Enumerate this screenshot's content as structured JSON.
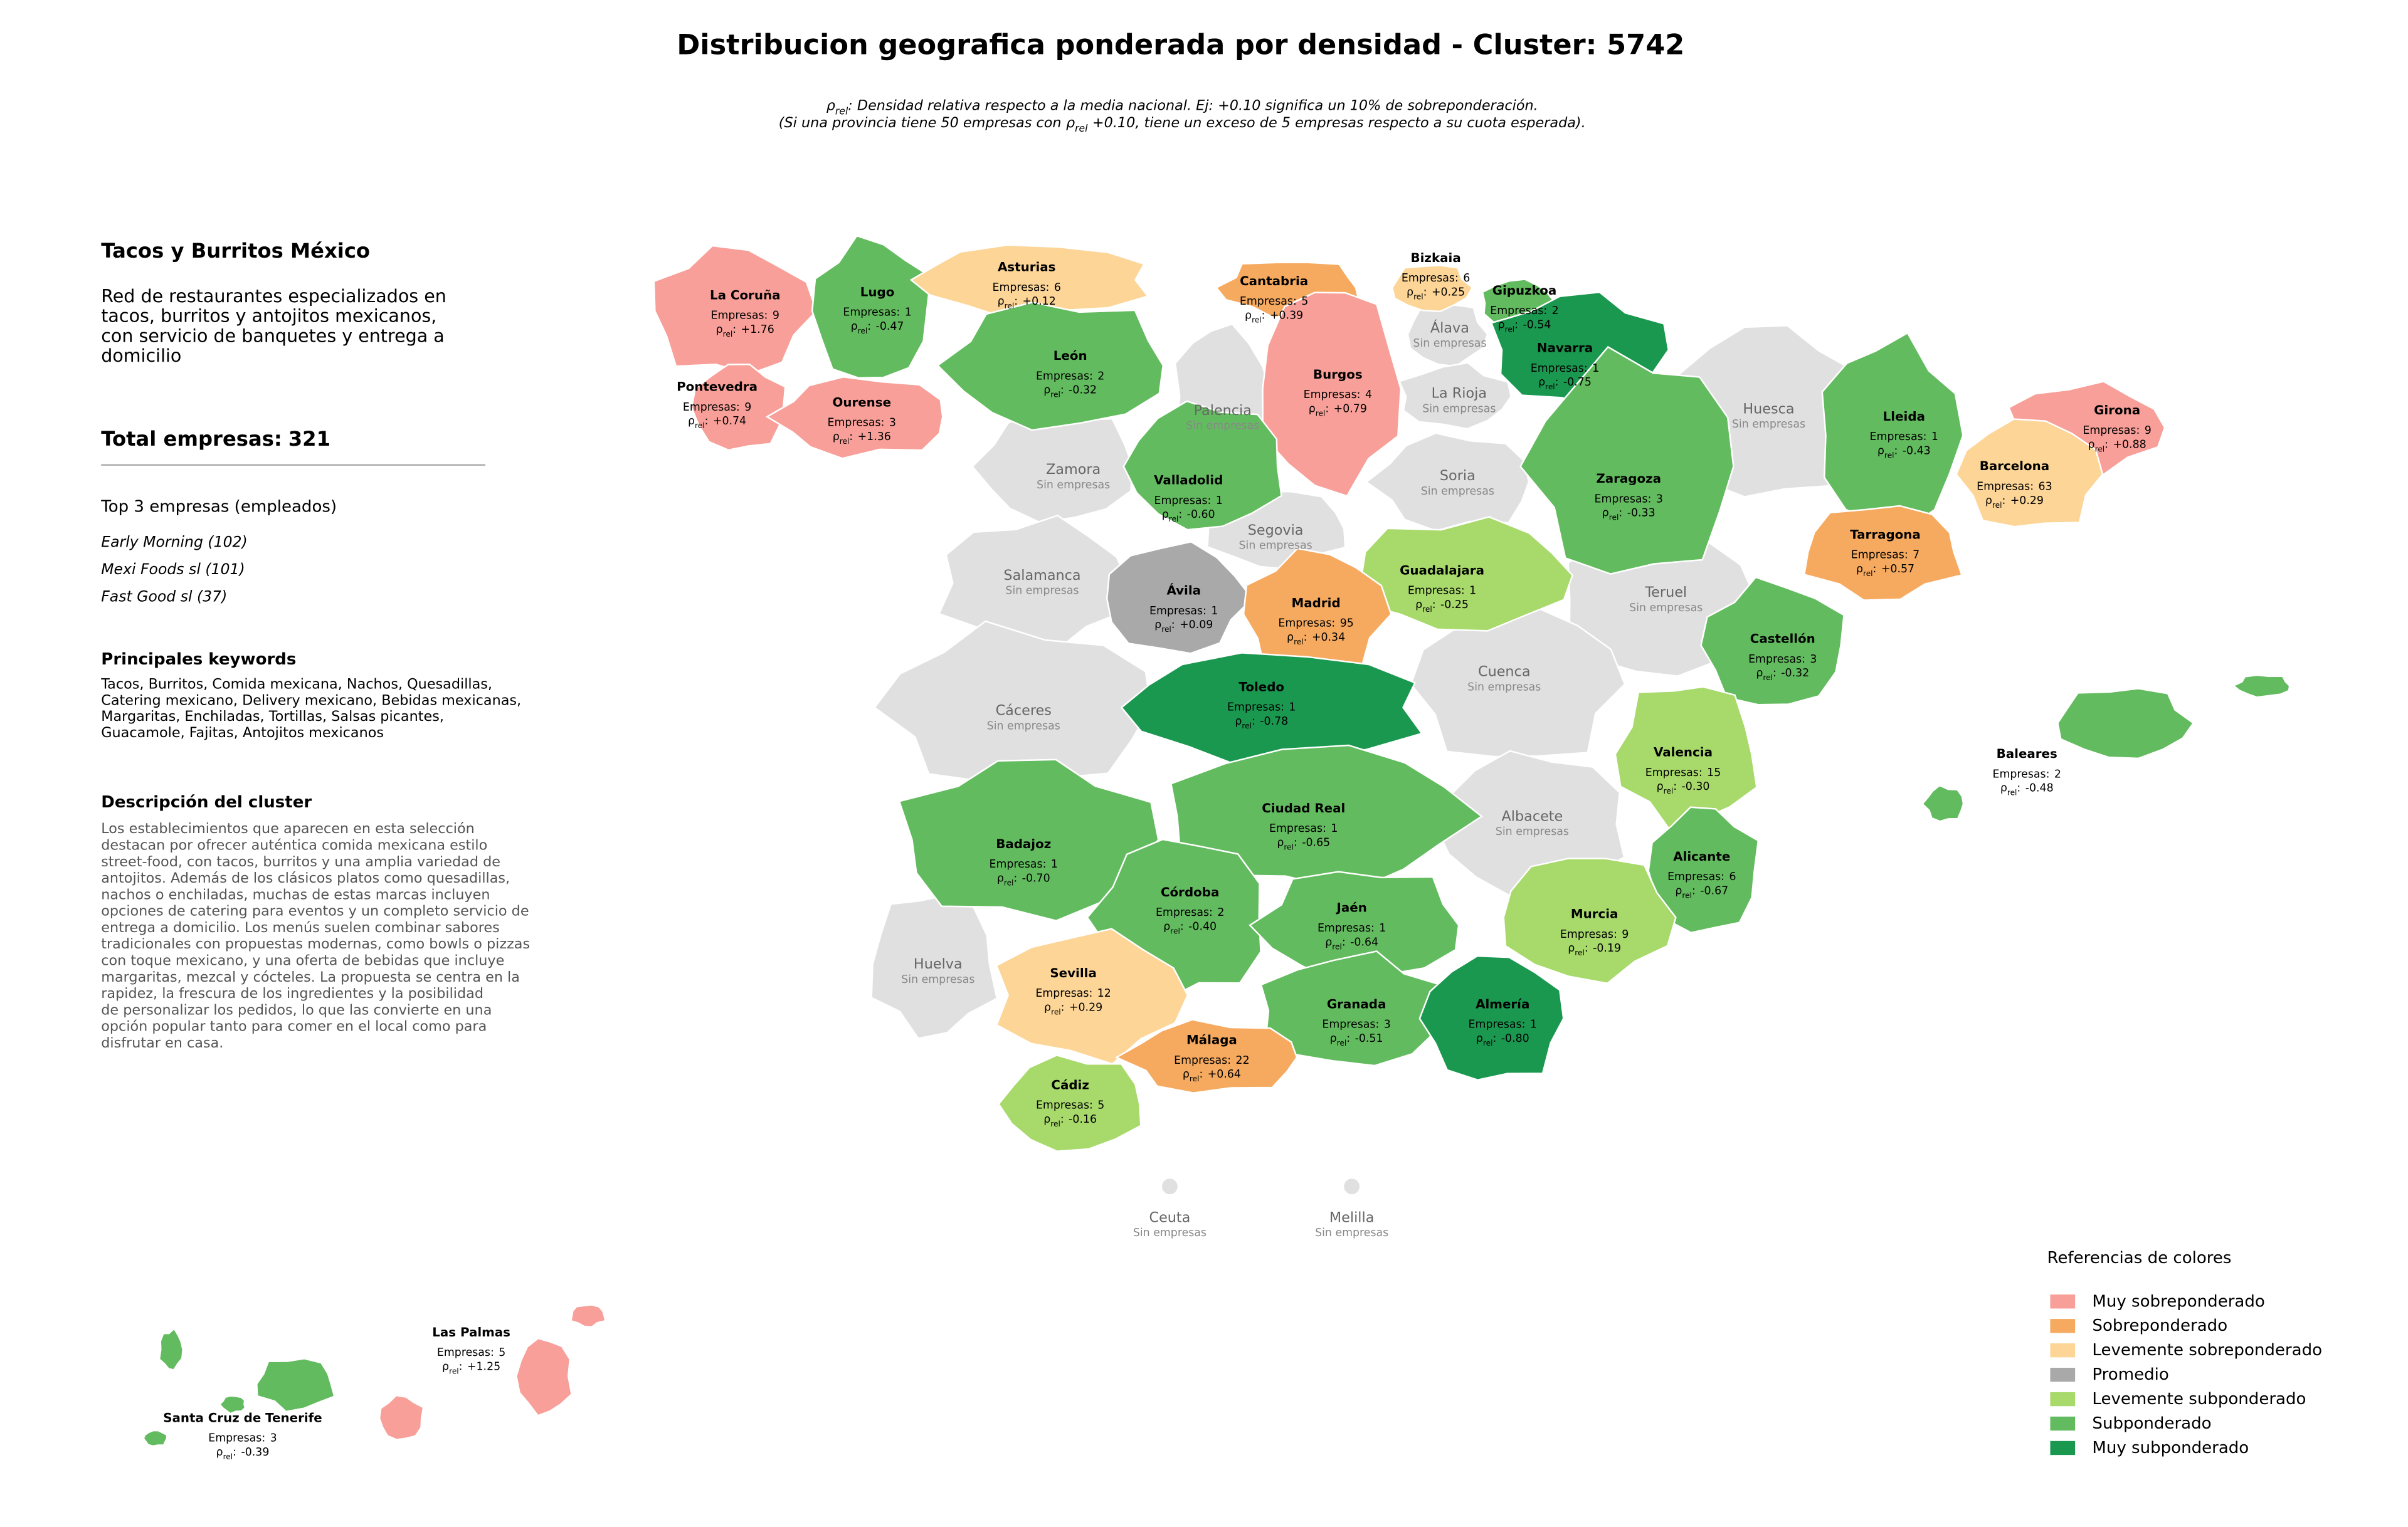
{
  "title": "Distribucion geografica ponderada por densidad - Cluster: 5742",
  "subtitle": {
    "line1": ": Densidad relativa respecto a la media nacional. Ej: +0.10 significa un 10% de sobreponderación.",
    "line2_before": "(Si una provincia tiene 50 empresas con",
    "line2_after": "+0.10, tiene un exceso de 5 empresas respecto a su cuota esperada)."
  },
  "labels": {
    "rho": "ρ",
    "rel": "rel",
    "colon": ":",
    "empresas": "Empresas:",
    "sin_empresas": "Sin empresas"
  },
  "sidebar": {
    "brand": "Tacos y Burritos México",
    "description": [
      "Red de restaurantes especializados en",
      "tacos, burritos y antojitos mexicanos,",
      "con servicio de banquetes y entrega a",
      "domicilio"
    ],
    "total_label": "Total empresas:",
    "total": 321,
    "top_heading": "Top 3 empresas (empleados)",
    "top": [
      "Early Morning (102)",
      "Mexi Foods sl (101)",
      "Fast Good sl (37)"
    ],
    "keywords_heading": "Principales keywords",
    "keywords": [
      "Tacos, Burritos, Comida mexicana, Nachos, Quesadillas,",
      "Catering mexicano, Delivery mexicano, Bebidas mexicanas,",
      "Margaritas, Enchiladas, Tortillas, Salsas picantes,",
      "Guacamole, Fajitas, Antojitos mexicanos"
    ],
    "cluster_heading": "Descripción del cluster",
    "cluster_description": [
      "Los establecimientos que aparecen en esta selección",
      "destacan por ofrecer auténtica comida mexicana estilo",
      "street-food, con tacos, burritos y una amplia variedad de",
      "antojitos. Además de los clásicos platos como quesadillas,",
      "nachos o enchiladas, muchas de estas marcas incluyen",
      "opciones de catering para eventos y un completo servicio de",
      "entrega a domicilio. Los menús suelen combinar sabores",
      "tradicionales con propuestas modernas, como bowls o pizzas",
      "con toque mexicano, y una oferta de bebidas que incluye",
      "margaritas, mezcal y cócteles. La propuesta se centra en la",
      "rapidez, la frescura de los ingredientes y la posibilidad",
      "de personalizar los pedidos, lo que las convierte en una",
      "opción popular tanto para comer en el local como para",
      "disfrutar en casa."
    ]
  },
  "legend": {
    "title": "Referencias de colores",
    "entries": [
      {
        "name": "Muy sobreponderado",
        "color": "#f79f98"
      },
      {
        "name": "Sobreponderado",
        "color": "#f6aa60"
      },
      {
        "name": "Levemente sobreponderado",
        "color": "#fcd597"
      },
      {
        "name": "Promedio",
        "color": "#a9a9a9"
      },
      {
        "name": "Levemente subponderado",
        "color": "#a8d96b"
      },
      {
        "name": "Subponderado",
        "color": "#63bb5f"
      },
      {
        "name": "Muy subponderado",
        "color": "#1a9850"
      }
    ]
  },
  "provinces": [
    {
      "name": "Álava",
      "color": "#e0e0e0"
    },
    {
      "name": "Palencia",
      "color": "#e0e0e0"
    },
    {
      "name": "La Rioja",
      "color": "#e0e0e0"
    },
    {
      "name": "Huesca",
      "color": "#e0e0e0"
    },
    {
      "name": "Soria",
      "color": "#e0e0e0"
    },
    {
      "name": "Zamora",
      "color": "#e0e0e0"
    },
    {
      "name": "Segovia",
      "color": "#e0e0e0"
    },
    {
      "name": "Salamanca",
      "color": "#e0e0e0"
    },
    {
      "name": "Teruel",
      "color": "#e0e0e0"
    },
    {
      "name": "Cuenca",
      "color": "#e0e0e0"
    },
    {
      "name": "Cáceres",
      "color": "#e0e0e0"
    },
    {
      "name": "Albacete",
      "color": "#e0e0e0"
    },
    {
      "name": "Huelva",
      "color": "#e0e0e0"
    },
    {
      "name": "Ceuta",
      "color": "#e0e0e0"
    },
    {
      "name": "Melilla",
      "color": "#e0e0e0"
    },
    {
      "name": "La Coruña",
      "empresas": 9,
      "rho": "+1.76",
      "color": "#f79f98"
    },
    {
      "name": "Lugo",
      "empresas": 1,
      "rho": "-0.47",
      "color": "#63bb5f"
    },
    {
      "name": "Asturias",
      "empresas": 6,
      "rho": "+0.12",
      "color": "#fcd597"
    },
    {
      "name": "Cantabria",
      "empresas": 5,
      "rho": "+0.39",
      "color": "#f6aa60"
    },
    {
      "name": "Bizkaia",
      "empresas": 6,
      "rho": "+0.25",
      "color": "#fcd597"
    },
    {
      "name": "Gipuzkoa",
      "empresas": 2,
      "rho": "-0.54",
      "color": "#63bb5f"
    },
    {
      "name": "Navarra",
      "empresas": 1,
      "rho": "-0.75",
      "color": "#1a9850"
    },
    {
      "name": "Pontevedra",
      "empresas": 9,
      "rho": "+0.74",
      "color": "#f79f98"
    },
    {
      "name": "Ourense",
      "empresas": 3,
      "rho": "+1.36",
      "color": "#f79f98"
    },
    {
      "name": "León",
      "empresas": 2,
      "rho": "-0.32",
      "color": "#63bb5f"
    },
    {
      "name": "Burgos",
      "empresas": 4,
      "rho": "+0.79",
      "color": "#f79f98"
    },
    {
      "name": "Girona",
      "empresas": 9,
      "rho": "+0.88",
      "color": "#f79f98"
    },
    {
      "name": "Lleida",
      "empresas": 1,
      "rho": "-0.43",
      "color": "#63bb5f"
    },
    {
      "name": "Barcelona",
      "empresas": 63,
      "rho": "+0.29",
      "color": "#fcd597"
    },
    {
      "name": "Zaragoza",
      "empresas": 3,
      "rho": "-0.33",
      "color": "#63bb5f"
    },
    {
      "name": "Valladolid",
      "empresas": 1,
      "rho": "-0.60",
      "color": "#63bb5f"
    },
    {
      "name": "Tarragona",
      "empresas": 7,
      "rho": "+0.57",
      "color": "#f6aa60"
    },
    {
      "name": "Guadalajara",
      "empresas": 1,
      "rho": "-0.25",
      "color": "#a8d96b"
    },
    {
      "name": "Ávila",
      "empresas": 1,
      "rho": "+0.09",
      "color": "#a9a9a9"
    },
    {
      "name": "Madrid",
      "empresas": 95,
      "rho": "+0.34",
      "color": "#f6aa60"
    },
    {
      "name": "Castellón",
      "empresas": 3,
      "rho": "-0.32",
      "color": "#63bb5f"
    },
    {
      "name": "Toledo",
      "empresas": 1,
      "rho": "-0.78",
      "color": "#1a9850"
    },
    {
      "name": "Valencia",
      "empresas": 15,
      "rho": "-0.30",
      "color": "#a8d96b"
    },
    {
      "name": "Baleares",
      "empresas": 2,
      "rho": "-0.48",
      "color": "#63bb5f"
    },
    {
      "name": "Ciudad Real",
      "empresas": 1,
      "rho": "-0.65",
      "color": "#63bb5f"
    },
    {
      "name": "Badajoz",
      "empresas": 1,
      "rho": "-0.70",
      "color": "#63bb5f"
    },
    {
      "name": "Alicante",
      "empresas": 6,
      "rho": "-0.67",
      "color": "#63bb5f"
    },
    {
      "name": "Córdoba",
      "empresas": 2,
      "rho": "-0.40",
      "color": "#63bb5f"
    },
    {
      "name": "Jaén",
      "empresas": 1,
      "rho": "-0.64",
      "color": "#63bb5f"
    },
    {
      "name": "Murcia",
      "empresas": 9,
      "rho": "-0.19",
      "color": "#a8d96b"
    },
    {
      "name": "Sevilla",
      "empresas": 12,
      "rho": "+0.29",
      "color": "#fcd597"
    },
    {
      "name": "Granada",
      "empresas": 3,
      "rho": "-0.51",
      "color": "#63bb5f"
    },
    {
      "name": "Almería",
      "empresas": 1,
      "rho": "-0.80",
      "color": "#1a9850"
    },
    {
      "name": "Málaga",
      "empresas": 22,
      "rho": "+0.64",
      "color": "#f6aa60"
    },
    {
      "name": "Cádiz",
      "empresas": 5,
      "rho": "-0.16",
      "color": "#a8d96b"
    },
    {
      "name": "Las Palmas",
      "empresas": 5,
      "rho": "+1.25",
      "color": "#f79f98"
    },
    {
      "name": "Santa Cruz de Tenerife",
      "empresas": 3,
      "rho": "-0.39",
      "color": "#63bb5f"
    }
  ]
}
